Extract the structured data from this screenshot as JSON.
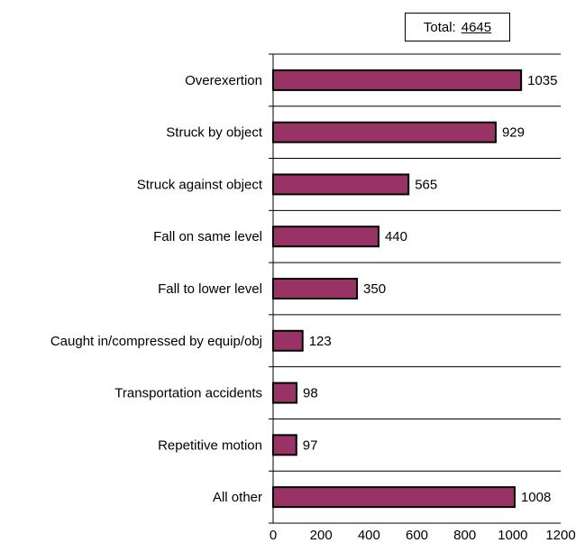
{
  "total": {
    "label": "Total:",
    "value": "4645"
  },
  "chart_data": {
    "type": "bar",
    "orientation": "horizontal",
    "categories": [
      "Overexertion",
      "Struck by object",
      "Struck against object",
      "Fall on same level",
      "Fall to lower level",
      "Caught in/compressed by equip/obj",
      "Transportation accidents",
      "Repetitive motion",
      "All other"
    ],
    "values": [
      1035,
      929,
      565,
      440,
      350,
      123,
      98,
      97,
      1008
    ],
    "xlim": [
      0,
      1200
    ],
    "xticks": [
      0,
      200,
      400,
      600,
      800,
      1000,
      1200
    ],
    "title": "",
    "xlabel": "",
    "ylabel": "",
    "grid": "horizontal",
    "bar_color": "#993366",
    "bar_edge_color": "#000000"
  }
}
